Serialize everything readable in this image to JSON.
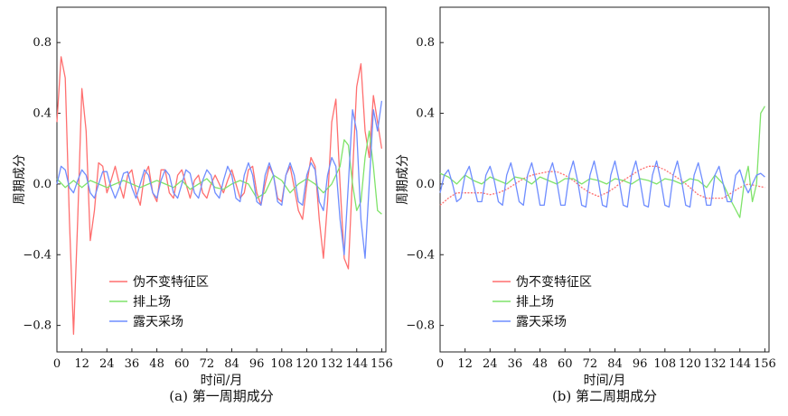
{
  "chart_data": [
    {
      "type": "line",
      "caption": "(a) 第一周期成分",
      "xlabel": "时间/月",
      "ylabel": "周期成分",
      "xlim": [
        0,
        158
      ],
      "ylim": [
        -0.95,
        1.0
      ],
      "xticks": [
        0,
        12,
        24,
        36,
        48,
        60,
        72,
        84,
        96,
        108,
        120,
        132,
        144,
        156
      ],
      "yticks": [
        -0.8,
        -0.4,
        0.0,
        0.4,
        0.8
      ],
      "ytick_labels": [
        "−0.8",
        "−0.4",
        "0.0",
        "0.4",
        "0.8"
      ],
      "legend_position": "lower-left",
      "series": [
        {
          "name": "伪不变特征区",
          "color": "#ff6f6f",
          "x": [
            0,
            2,
            4,
            6,
            8,
            10,
            12,
            14,
            16,
            18,
            20,
            22,
            24,
            26,
            28,
            30,
            32,
            34,
            36,
            38,
            40,
            42,
            44,
            46,
            48,
            50,
            52,
            54,
            56,
            58,
            60,
            62,
            64,
            66,
            68,
            70,
            72,
            74,
            76,
            78,
            80,
            82,
            84,
            86,
            88,
            90,
            92,
            94,
            96,
            98,
            100,
            102,
            104,
            106,
            108,
            110,
            112,
            114,
            116,
            118,
            120,
            122,
            124,
            126,
            128,
            130,
            132,
            134,
            136,
            138,
            140,
            142,
            144,
            146,
            148,
            150,
            152,
            154,
            156
          ],
          "y": [
            0.35,
            0.72,
            0.6,
            -0.2,
            -0.85,
            -0.2,
            0.54,
            0.3,
            -0.32,
            -0.15,
            0.12,
            0.1,
            -0.05,
            0.02,
            0.1,
            0.0,
            -0.08,
            0.05,
            0.08,
            -0.05,
            -0.12,
            0.05,
            0.1,
            -0.05,
            -0.1,
            0.08,
            0.08,
            -0.05,
            -0.08,
            0.05,
            0.08,
            0.0,
            -0.08,
            0.02,
            0.05,
            -0.05,
            -0.08,
            0.0,
            0.05,
            0.0,
            -0.05,
            0.02,
            0.08,
            0.0,
            -0.08,
            -0.05,
            0.08,
            0.1,
            -0.05,
            -0.12,
            0.0,
            0.1,
            0.05,
            -0.08,
            -0.1,
            0.05,
            0.1,
            -0.02,
            -0.15,
            -0.2,
            0.0,
            0.15,
            0.1,
            -0.2,
            -0.42,
            -0.1,
            0.35,
            0.48,
            0.0,
            -0.42,
            -0.48,
            0.05,
            0.55,
            0.68,
            0.3,
            0.15,
            0.5,
            0.35,
            0.2
          ]
        },
        {
          "name": "排上场",
          "color": "#7fe36a",
          "x": [
            0,
            4,
            8,
            12,
            16,
            20,
            24,
            28,
            32,
            36,
            40,
            44,
            48,
            52,
            56,
            60,
            64,
            68,
            72,
            76,
            80,
            84,
            88,
            92,
            96,
            100,
            104,
            108,
            112,
            116,
            120,
            124,
            128,
            132,
            136,
            138,
            140,
            142,
            144,
            146,
            148,
            150,
            152,
            154,
            156
          ],
          "y": [
            0.03,
            -0.02,
            0.02,
            -0.02,
            0.02,
            0.0,
            -0.02,
            0.0,
            0.02,
            0.0,
            -0.02,
            0.0,
            0.02,
            0.0,
            -0.02,
            0.02,
            -0.03,
            0.0,
            0.03,
            -0.02,
            -0.03,
            0.0,
            0.02,
            0.0,
            -0.08,
            -0.05,
            0.05,
            0.02,
            -0.05,
            0.0,
            0.03,
            0.0,
            -0.05,
            0.0,
            0.1,
            0.25,
            0.22,
            0.0,
            -0.15,
            -0.1,
            0.15,
            0.3,
            0.1,
            -0.15,
            -0.17
          ]
        },
        {
          "name": "露天采场",
          "color": "#6f8dff",
          "x": [
            0,
            2,
            4,
            6,
            8,
            10,
            12,
            14,
            16,
            18,
            20,
            22,
            24,
            26,
            28,
            30,
            32,
            34,
            36,
            38,
            40,
            42,
            44,
            46,
            48,
            50,
            52,
            54,
            56,
            58,
            60,
            62,
            64,
            66,
            68,
            70,
            72,
            74,
            76,
            78,
            80,
            82,
            84,
            86,
            88,
            90,
            92,
            94,
            96,
            98,
            100,
            102,
            104,
            106,
            108,
            110,
            112,
            114,
            116,
            118,
            120,
            122,
            124,
            126,
            128,
            130,
            132,
            134,
            136,
            138,
            140,
            142,
            144,
            146,
            148,
            150,
            152,
            154,
            156
          ],
          "y": [
            0.0,
            0.1,
            0.08,
            -0.02,
            -0.05,
            0.02,
            0.08,
            0.05,
            -0.05,
            -0.08,
            0.0,
            0.07,
            0.07,
            -0.02,
            -0.08,
            -0.02,
            0.06,
            0.07,
            -0.02,
            -0.08,
            0.0,
            0.08,
            0.05,
            -0.05,
            -0.08,
            0.02,
            0.08,
            0.05,
            -0.05,
            -0.08,
            0.0,
            0.08,
            0.06,
            -0.05,
            -0.08,
            0.02,
            0.08,
            0.05,
            -0.05,
            -0.08,
            0.02,
            0.1,
            0.05,
            -0.08,
            -0.1,
            0.05,
            0.12,
            0.05,
            -0.1,
            -0.12,
            0.05,
            0.12,
            0.05,
            -0.1,
            -0.12,
            0.05,
            0.12,
            0.05,
            -0.1,
            -0.12,
            0.05,
            0.12,
            0.08,
            -0.1,
            -0.15,
            0.05,
            0.15,
            0.1,
            -0.2,
            -0.4,
            0.0,
            0.42,
            0.3,
            -0.2,
            -0.42,
            0.0,
            0.42,
            0.3,
            0.47
          ]
        }
      ]
    },
    {
      "type": "line",
      "caption": "(b) 第二周期成分",
      "xlabel": "时间/月",
      "ylabel": "周期成分",
      "xlim": [
        0,
        158
      ],
      "ylim": [
        -0.95,
        1.0
      ],
      "xticks": [
        0,
        12,
        24,
        36,
        48,
        60,
        72,
        84,
        96,
        108,
        120,
        132,
        144,
        156
      ],
      "yticks": [
        -0.8,
        -0.4,
        0.0,
        0.4,
        0.8
      ],
      "ytick_labels": [
        "−0.8",
        "−0.4",
        "0.0",
        "0.4",
        "0.8"
      ],
      "legend_position": "lower-left",
      "series": [
        {
          "name": "伪不变特征区",
          "color": "#ff6f6f",
          "x": [
            0,
            4,
            8,
            12,
            16,
            20,
            24,
            28,
            32,
            36,
            40,
            44,
            48,
            52,
            56,
            60,
            64,
            68,
            72,
            76,
            80,
            84,
            88,
            92,
            96,
            100,
            104,
            108,
            112,
            116,
            120,
            124,
            128,
            132,
            136,
            140,
            144,
            148,
            152,
            156
          ],
          "y": [
            -0.12,
            -0.08,
            -0.05,
            -0.05,
            -0.05,
            -0.05,
            -0.06,
            -0.05,
            -0.03,
            0.0,
            0.03,
            0.05,
            0.06,
            0.07,
            0.07,
            0.05,
            0.02,
            -0.02,
            -0.05,
            -0.07,
            -0.05,
            -0.02,
            0.02,
            0.05,
            0.08,
            0.1,
            0.1,
            0.08,
            0.05,
            0.02,
            -0.02,
            -0.06,
            -0.08,
            -0.08,
            -0.08,
            -0.05,
            -0.02,
            0.0,
            -0.01,
            -0.02
          ]
        },
        {
          "name": "排上场",
          "color": "#7fe36a",
          "x": [
            0,
            4,
            8,
            12,
            16,
            20,
            24,
            28,
            32,
            36,
            40,
            44,
            48,
            52,
            56,
            60,
            64,
            68,
            72,
            76,
            80,
            84,
            88,
            92,
            96,
            100,
            104,
            108,
            112,
            116,
            120,
            124,
            128,
            132,
            136,
            140,
            144,
            146,
            148,
            150,
            152,
            154,
            156
          ],
          "y": [
            0.06,
            0.04,
            0.0,
            0.05,
            0.02,
            0.0,
            0.04,
            0.02,
            0.0,
            0.04,
            0.03,
            0.0,
            0.04,
            0.02,
            0.0,
            0.03,
            0.03,
            0.0,
            0.03,
            0.02,
            0.0,
            0.03,
            0.02,
            0.0,
            0.03,
            0.02,
            0.0,
            0.03,
            0.02,
            0.0,
            0.03,
            0.02,
            -0.02,
            0.05,
            0.0,
            -0.1,
            -0.19,
            0.0,
            0.1,
            -0.1,
            0.0,
            0.4,
            0.44
          ]
        },
        {
          "name": "露天采场",
          "color": "#6f8dff",
          "x": [
            0,
            2,
            4,
            6,
            8,
            10,
            12,
            14,
            16,
            18,
            20,
            22,
            24,
            26,
            28,
            30,
            32,
            34,
            36,
            38,
            40,
            42,
            44,
            46,
            48,
            50,
            52,
            54,
            56,
            58,
            60,
            62,
            64,
            66,
            68,
            70,
            72,
            74,
            76,
            78,
            80,
            82,
            84,
            86,
            88,
            90,
            92,
            94,
            96,
            98,
            100,
            102,
            104,
            106,
            108,
            110,
            112,
            114,
            116,
            118,
            120,
            122,
            124,
            126,
            128,
            130,
            132,
            134,
            136,
            138,
            140,
            142,
            144,
            146,
            148,
            150,
            152,
            154,
            156
          ],
          "y": [
            -0.05,
            0.05,
            0.08,
            0.0,
            -0.1,
            -0.08,
            0.05,
            0.1,
            0.0,
            -0.1,
            -0.1,
            0.05,
            0.1,
            0.02,
            -0.1,
            -0.12,
            0.05,
            0.12,
            0.02,
            -0.1,
            -0.12,
            0.05,
            0.12,
            0.02,
            -0.12,
            -0.12,
            0.05,
            0.12,
            0.02,
            -0.12,
            -0.12,
            0.05,
            0.13,
            0.02,
            -0.12,
            -0.13,
            0.05,
            0.13,
            0.02,
            -0.12,
            -0.13,
            0.05,
            0.13,
            0.02,
            -0.12,
            -0.13,
            0.05,
            0.13,
            0.02,
            -0.12,
            -0.13,
            0.05,
            0.13,
            0.02,
            -0.12,
            -0.13,
            0.05,
            0.13,
            0.02,
            -0.12,
            -0.13,
            0.05,
            0.12,
            0.02,
            -0.12,
            -0.12,
            0.05,
            0.1,
            0.0,
            -0.1,
            -0.1,
            0.05,
            0.08,
            0.0,
            -0.05,
            0.0,
            0.05,
            0.06,
            0.04
          ]
        }
      ]
    }
  ]
}
